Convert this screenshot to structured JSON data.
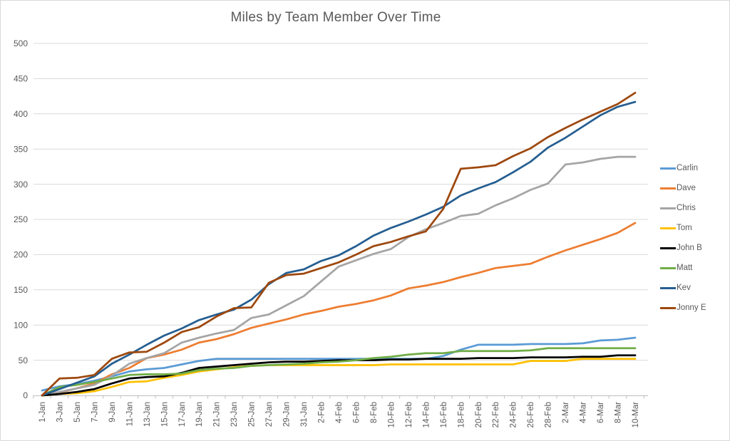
{
  "chart_data": {
    "type": "line",
    "title": "Miles by Team Member Over Time",
    "xlabel": "",
    "ylabel": "",
    "ylim": [
      0,
      500
    ],
    "y_ticks": [
      0,
      50,
      100,
      150,
      200,
      250,
      300,
      350,
      400,
      450,
      500
    ],
    "grid": "horizontal",
    "legend_position": "right",
    "colors": {
      "axis_text": "#595959",
      "title_text": "#595959",
      "gridline": "#d9d9d9",
      "axis_line": "#bfbfbf",
      "background": "#ffffff"
    },
    "x_labels": [
      "1-Jan",
      "3-Jan",
      "5-Jan",
      "7-Jan",
      "9-Jan",
      "11-Jan",
      "13-Jan",
      "15-Jan",
      "17-Jan",
      "19-Jan",
      "21-Jan",
      "23-Jan",
      "25-Jan",
      "27-Jan",
      "29-Jan",
      "31-Jan",
      "2-Feb",
      "4-Feb",
      "6-Feb",
      "8-Feb",
      "10-Feb",
      "12-Feb",
      "14-Feb",
      "16-Feb",
      "18-Feb",
      "20-Feb",
      "22-Feb",
      "24-Feb",
      "26-Feb",
      "28-Feb",
      "2-Mar",
      "4-Mar",
      "6-Mar",
      "8-Mar",
      "10-Mar"
    ],
    "series": [
      {
        "name": "Carlin",
        "color": "#5B9BD5",
        "values": [
          7,
          13,
          16,
          21,
          27,
          34,
          37,
          39,
          44,
          49,
          52,
          52,
          52,
          52,
          52,
          52,
          52,
          52,
          52,
          52,
          52,
          52,
          52,
          56,
          65,
          72,
          72,
          72,
          73,
          73,
          73,
          74,
          78,
          79,
          82
        ]
      },
      {
        "name": "Dave",
        "color": "#ED7D31",
        "values": [
          0,
          4,
          10,
          17,
          30,
          39,
          53,
          58,
          65,
          75,
          80,
          87,
          96,
          102,
          108,
          115,
          120,
          126,
          130,
          135,
          142,
          152,
          156,
          161,
          168,
          174,
          181,
          184,
          187,
          197,
          206,
          214,
          222,
          231,
          245
        ]
      },
      {
        "name": "Chris",
        "color": "#A5A5A5",
        "values": [
          0,
          5,
          10,
          15,
          28,
          45,
          53,
          60,
          75,
          82,
          88,
          93,
          110,
          115,
          128,
          141,
          162,
          183,
          192,
          201,
          208,
          225,
          236,
          245,
          255,
          258,
          270,
          280,
          292,
          301,
          328,
          331,
          336,
          339,
          339
        ]
      },
      {
        "name": "Tom",
        "color": "#FFC000",
        "values": [
          0,
          2,
          3,
          6,
          12,
          19,
          20,
          25,
          29,
          34,
          37,
          40,
          42,
          43,
          43,
          43,
          43,
          43,
          43,
          43,
          44,
          44,
          44,
          44,
          44,
          44,
          44,
          44,
          49,
          49,
          49,
          52,
          52,
          52,
          52
        ]
      },
      {
        "name": "John B",
        "color": "#000000",
        "values": [
          0,
          2,
          5,
          9,
          17,
          24,
          26,
          27,
          32,
          39,
          41,
          43,
          45,
          47,
          48,
          48,
          49,
          50,
          50,
          50,
          51,
          51,
          52,
          52,
          52,
          53,
          53,
          53,
          54,
          54,
          54,
          55,
          55,
          57,
          57
        ]
      },
      {
        "name": "Matt",
        "color": "#70AD47",
        "values": [
          0,
          12,
          15,
          19,
          24,
          29,
          30,
          30,
          31,
          36,
          38,
          39,
          42,
          43,
          44,
          45,
          47,
          48,
          50,
          53,
          55,
          58,
          60,
          60,
          63,
          63,
          63,
          63,
          64,
          67,
          67,
          67,
          67,
          67,
          67
        ]
      },
      {
        "name": "Kev",
        "color": "#255E91",
        "values": [
          0,
          9,
          18,
          27,
          45,
          58,
          72,
          85,
          95,
          107,
          115,
          122,
          136,
          158,
          174,
          179,
          191,
          199,
          212,
          227,
          238,
          247,
          257,
          268,
          284,
          294,
          303,
          317,
          332,
          352,
          366,
          382,
          398,
          410,
          417
        ]
      },
      {
        "name": "Jonny E",
        "color": "#9E480E",
        "values": [
          0,
          24,
          25,
          29,
          52,
          61,
          62,
          75,
          90,
          97,
          112,
          124,
          125,
          160,
          171,
          173,
          181,
          189,
          200,
          212,
          218,
          226,
          233,
          265,
          322,
          324,
          327,
          340,
          351,
          367,
          380,
          392,
          403,
          414,
          430
        ]
      }
    ]
  }
}
